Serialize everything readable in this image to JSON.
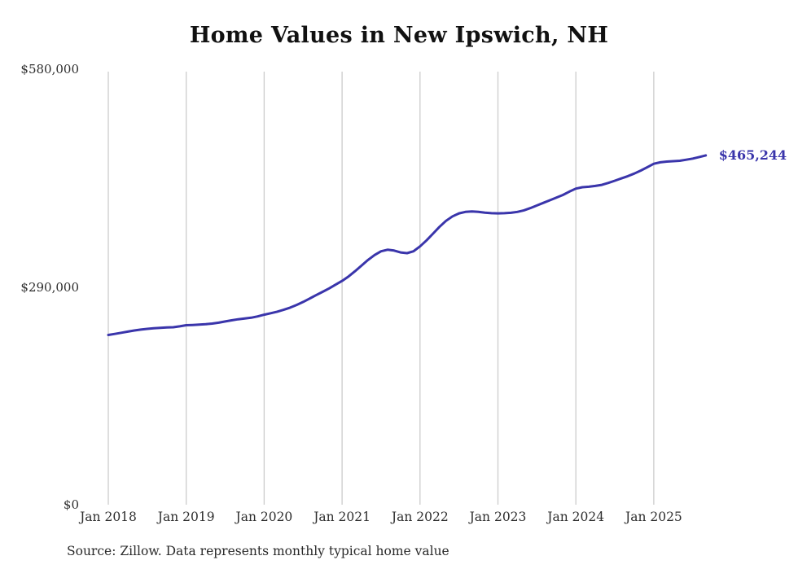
{
  "chart_data": {
    "type": "line",
    "title": "Home Values in New Ipswich, NH",
    "series_name": "Monthly typical home value",
    "x_start": "2018-01",
    "x_interval": "monthly",
    "x_end": "2025-09",
    "values": [
      226000,
      227500,
      229000,
      230500,
      232000,
      233200,
      234200,
      235000,
      235600,
      236000,
      236300,
      237500,
      239000,
      239400,
      239800,
      240400,
      241200,
      242400,
      244000,
      245600,
      247000,
      248000,
      249000,
      250800,
      253000,
      255000,
      257000,
      259500,
      262500,
      266000,
      270000,
      274500,
      279000,
      283500,
      288000,
      293000,
      298000,
      304000,
      311000,
      318500,
      326000,
      332500,
      337500,
      339500,
      338500,
      336000,
      335000,
      337500,
      344000,
      352000,
      361000,
      370000,
      378000,
      384000,
      388000,
      390000,
      390500,
      390000,
      389000,
      388200,
      388000,
      388200,
      388800,
      390000,
      392000,
      395000,
      398500,
      402000,
      405500,
      409000,
      412500,
      417000,
      421000,
      422800,
      423500,
      424500,
      426000,
      428500,
      431500,
      434500,
      437500,
      441000,
      445000,
      449500,
      454000,
      456000,
      457000,
      457500,
      458000,
      459500,
      461000,
      463000,
      465244
    ],
    "ylim": [
      0,
      580000
    ],
    "y_ticks": [
      580000,
      290000,
      0
    ],
    "y_tick_labels": [
      "$580,000",
      "$290,000",
      "$0"
    ],
    "x_tick_labels": [
      "Jan 2018",
      "Jan 2019",
      "Jan 2020",
      "Jan 2021",
      "Jan 2022",
      "Jan 2023",
      "Jan 2024",
      "Jan 2025"
    ],
    "end_label": "$465,244",
    "final_value": 465244,
    "line_color": "#3a35ab",
    "grid_color": "#cccccc",
    "legend": "none",
    "grid": "vertical-only",
    "source_note": "Source: Zillow. Data represents monthly typical home value"
  }
}
